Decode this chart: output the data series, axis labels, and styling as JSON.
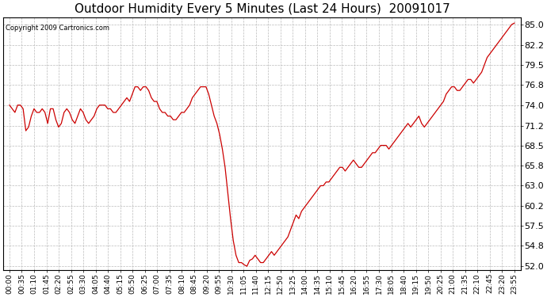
{
  "title": "Outdoor Humidity Every 5 Minutes (Last 24 Hours)  20091017",
  "copyright_text": "Copyright 2009 Cartronics.com",
  "line_color": "#cc0000",
  "background_color": "#ffffff",
  "plot_bg_color": "#ffffff",
  "grid_color": "#bbbbbb",
  "title_fontsize": 11,
  "ylabel_fontsize": 8,
  "xlabel_fontsize": 6.5,
  "yticks": [
    52.0,
    54.8,
    57.5,
    60.2,
    63.0,
    65.8,
    68.5,
    71.2,
    74.0,
    76.8,
    79.5,
    82.2,
    85.0
  ],
  "ylim": [
    51.5,
    86.0
  ],
  "xtick_labels": [
    "00:00",
    "00:35",
    "01:10",
    "01:45",
    "02:20",
    "02:55",
    "03:30",
    "04:05",
    "04:40",
    "05:15",
    "05:50",
    "06:25",
    "07:00",
    "07:35",
    "08:10",
    "08:45",
    "09:20",
    "09:55",
    "10:30",
    "11:05",
    "11:40",
    "12:15",
    "12:50",
    "13:25",
    "14:00",
    "14:35",
    "15:10",
    "15:45",
    "16:20",
    "16:55",
    "17:30",
    "18:05",
    "18:40",
    "19:15",
    "19:50",
    "20:25",
    "21:00",
    "21:35",
    "22:10",
    "22:45",
    "23:20",
    "23:55"
  ],
  "humidity_values": [
    74.0,
    73.5,
    73.0,
    74.0,
    74.0,
    73.5,
    70.5,
    71.0,
    72.5,
    73.5,
    73.0,
    73.0,
    73.5,
    73.0,
    71.5,
    73.5,
    73.5,
    72.0,
    71.0,
    71.5,
    73.0,
    73.5,
    73.0,
    72.0,
    71.5,
    72.5,
    73.5,
    73.0,
    72.0,
    71.5,
    72.0,
    72.5,
    73.5,
    74.0,
    74.0,
    74.0,
    73.5,
    73.5,
    73.0,
    73.0,
    73.5,
    74.0,
    74.5,
    75.0,
    74.5,
    75.5,
    76.5,
    76.5,
    76.0,
    76.5,
    76.5,
    76.0,
    75.0,
    74.5,
    74.5,
    73.5,
    73.0,
    73.0,
    72.5,
    72.5,
    72.0,
    72.0,
    72.5,
    73.0,
    73.0,
    73.5,
    74.0,
    75.0,
    75.5,
    76.0,
    76.5,
    76.5,
    76.5,
    75.5,
    74.0,
    72.5,
    71.5,
    70.0,
    68.0,
    65.5,
    62.0,
    58.5,
    55.5,
    53.5,
    52.5,
    52.5,
    52.2,
    52.0,
    52.8,
    53.0,
    53.5,
    53.0,
    52.5,
    52.5,
    53.0,
    53.5,
    54.0,
    53.5,
    54.0,
    54.5,
    55.0,
    55.5,
    56.0,
    57.0,
    58.0,
    59.0,
    58.5,
    59.5,
    60.0,
    60.5,
    61.0,
    61.5,
    62.0,
    62.5,
    63.0,
    63.0,
    63.5,
    63.5,
    64.0,
    64.5,
    65.0,
    65.5,
    65.5,
    65.0,
    65.5,
    66.0,
    66.5,
    66.0,
    65.5,
    65.5,
    66.0,
    66.5,
    67.0,
    67.5,
    67.5,
    68.0,
    68.5,
    68.5,
    68.5,
    68.0,
    68.5,
    69.0,
    69.5,
    70.0,
    70.5,
    71.0,
    71.5,
    71.0,
    71.5,
    72.0,
    72.5,
    71.5,
    71.0,
    71.5,
    72.0,
    72.5,
    73.0,
    73.5,
    74.0,
    74.5,
    75.5,
    76.0,
    76.5,
    76.5,
    76.0,
    76.0,
    76.5,
    77.0,
    77.5,
    77.5,
    77.0,
    77.5,
    78.0,
    78.5,
    79.5,
    80.5,
    81.0,
    81.5,
    82.0,
    82.5,
    83.0,
    83.5,
    84.0,
    84.5,
    85.0,
    85.2
  ]
}
